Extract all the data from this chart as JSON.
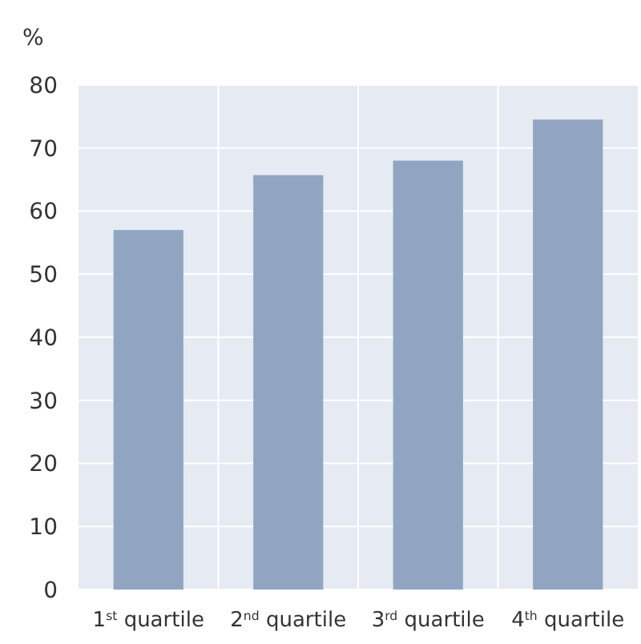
{
  "chart_data": {
    "type": "bar",
    "ylabel": "%",
    "categories": [
      "1$^{st}$ quartile",
      "2$^{nd}$ quartile",
      "3$^{rd}$ quartile",
      "4$^{th}$ quartile"
    ],
    "values": [
      57,
      65.7,
      68,
      74.5
    ],
    "color": "#91a5c3",
    "ylim": [
      0,
      80
    ],
    "yticks": [
      0,
      10,
      20,
      30,
      40,
      50,
      60,
      70,
      80
    ],
    "grid": true
  }
}
